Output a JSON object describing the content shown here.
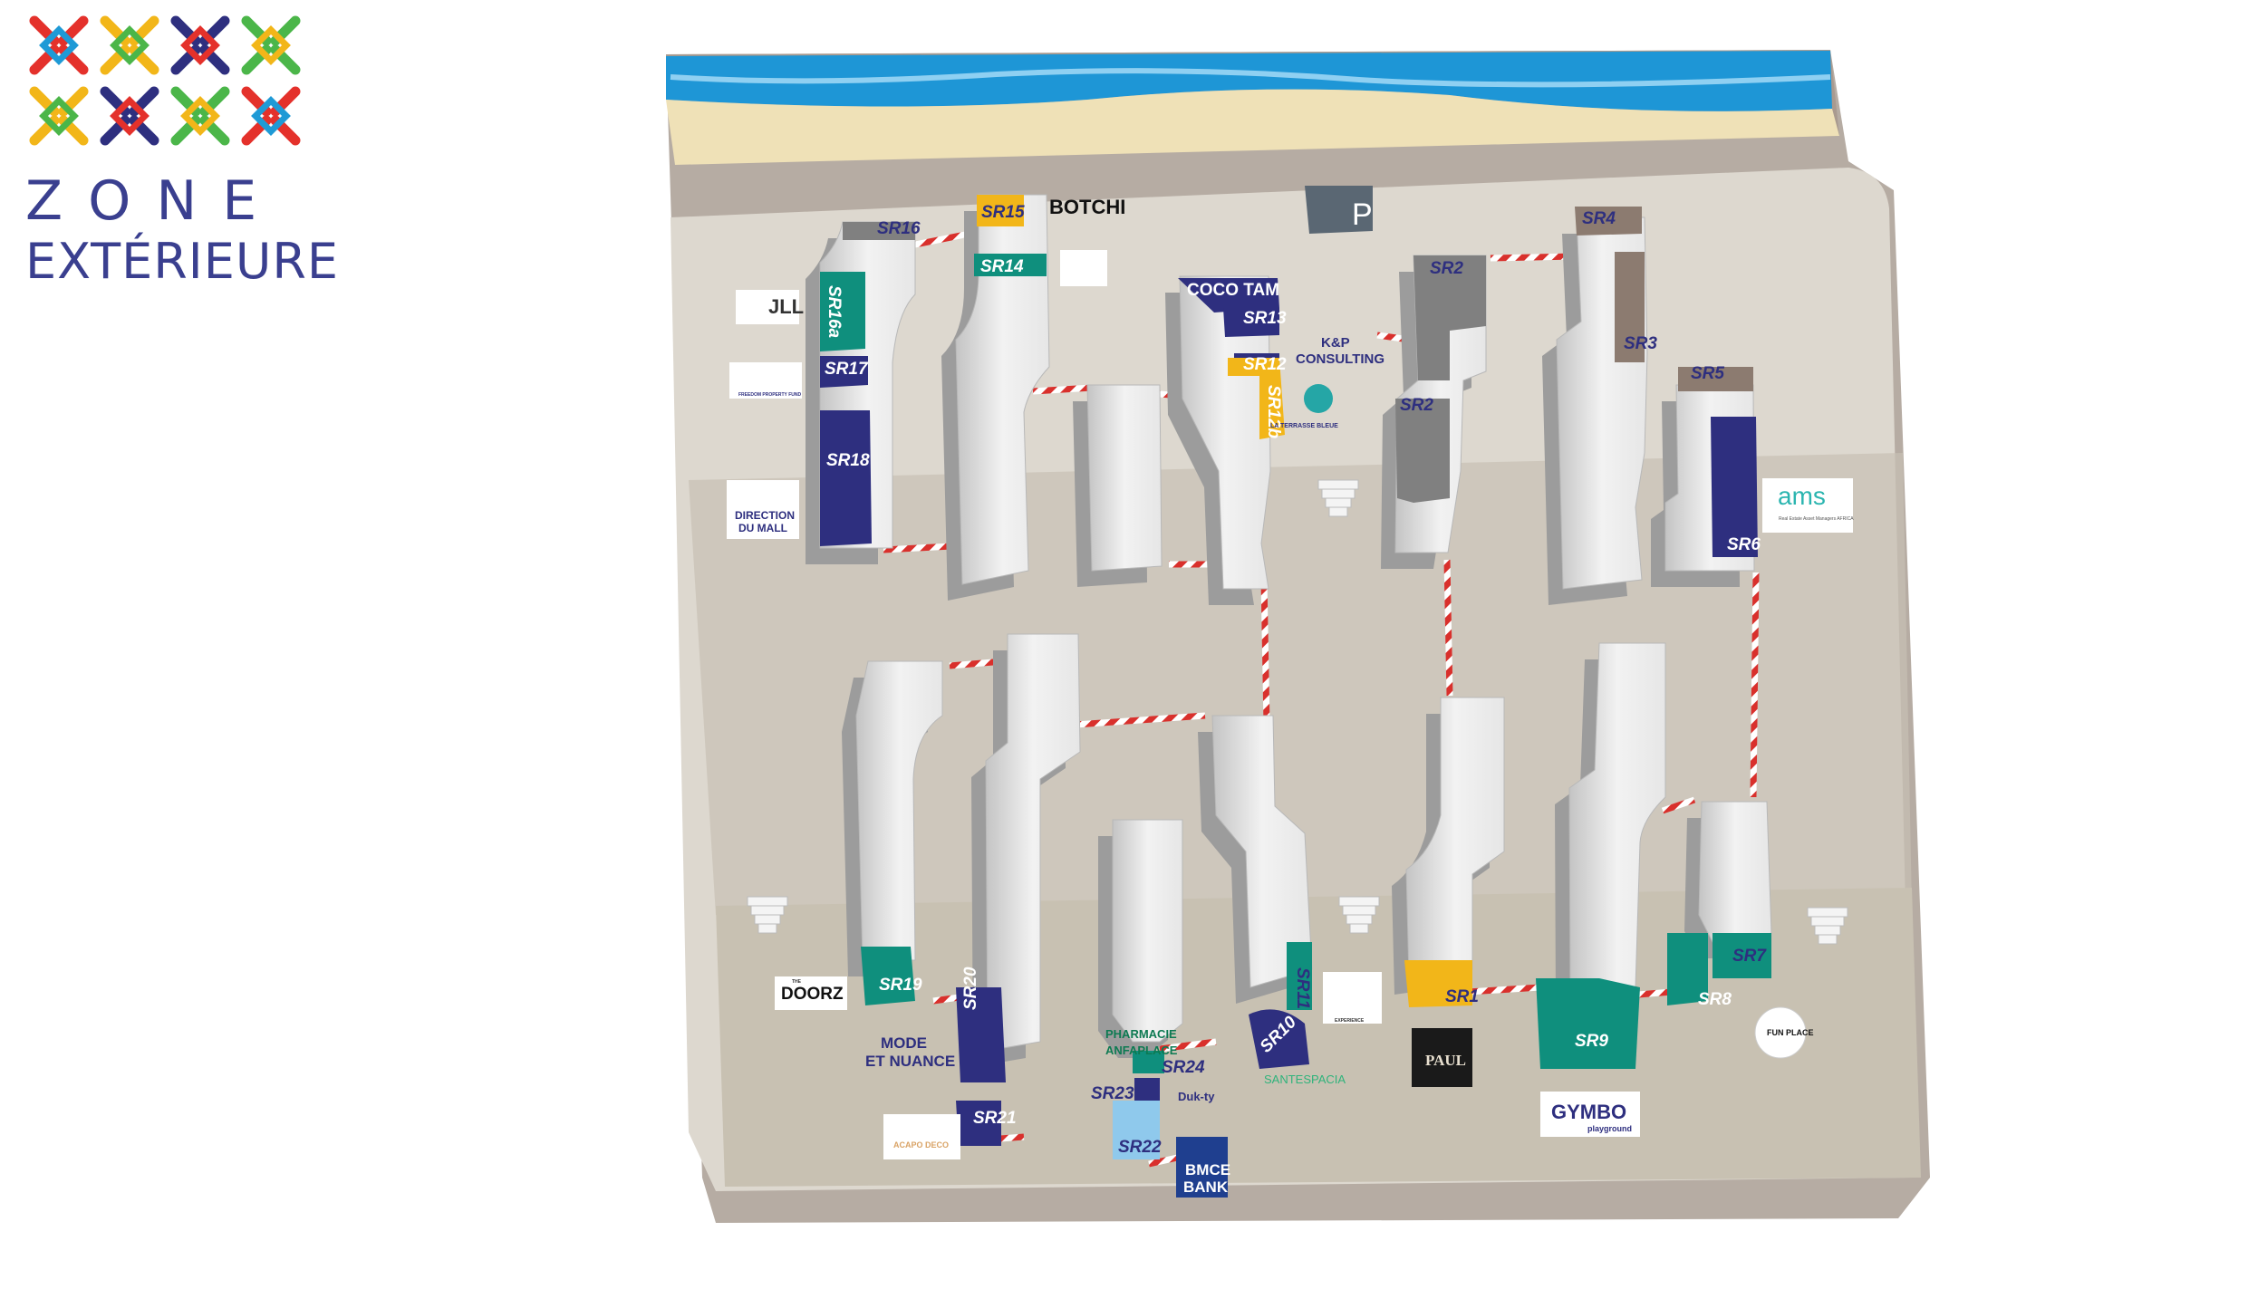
{
  "header": {
    "zone_word": "ZONE",
    "zone_sub": "EXTÉRIEURE"
  },
  "colors": {
    "navy": "#2e2f7f",
    "teal": "#0f8f7d",
    "yellow": "#f2b619",
    "grey_unit": "#808080",
    "brown": "#8c7b70",
    "light_blue": "#8fc9ec",
    "sea": "#1e96d6",
    "sand": "#efe1b7",
    "ground": "#ddd8ce"
  },
  "units": {
    "sr1": "SR1",
    "sr2_top": "SR2",
    "sr2_bottom": "SR2",
    "sr3": "SR3",
    "sr4": "SR4",
    "sr5": "SR5",
    "sr6": "SR6",
    "sr7": "SR7",
    "sr8": "SR8",
    "sr9": "SR9",
    "sr10": "SR10",
    "sr11": "SR11",
    "sr12": "SR12",
    "sr12b": "SR12b",
    "sr13": "SR13",
    "sr14": "SR14",
    "sr15": "SR15",
    "sr16": "SR16",
    "sr16a": "SR16a",
    "sr17": "SR17",
    "sr18": "SR18",
    "sr19": "SR19",
    "sr20": "SR20",
    "sr21": "SR21",
    "sr22": "SR22",
    "sr23": "SR23",
    "sr24": "SR24"
  },
  "tenants": {
    "botchi": "BOTCHI",
    "coco_tam": "COCO TAM",
    "kp_consulting": [
      "K&P",
      "CONSULTING"
    ],
    "jll": "JLL",
    "freedom": "FREEDOM PROPERTY FUND",
    "direction_mall": [
      "DIRECTION",
      "DU MALL"
    ],
    "ams": "ams",
    "ams_sub": "Real Estate Asset Managers AFRICA",
    "terrasse": "LA TERRASSE BLEUE",
    "doorz": "DOORZ",
    "doorz_small": "THE",
    "mode_nuance": [
      "MODE",
      "ET NUANCE"
    ],
    "pharmacie": [
      "PHARMACIE",
      "ANFAPLACE"
    ],
    "bmce": [
      "BMCE",
      "BANK"
    ],
    "paul": "PAUL",
    "gymbo": "GYMBO",
    "gymbo_sub": "playground",
    "funplace": "FUN PLACE",
    "xs": "EXPERIENCE",
    "santespacia": "SANTESPACIA",
    "duk": "Duk-ty",
    "acapo": "ACAPO DECO",
    "parking": "P"
  }
}
